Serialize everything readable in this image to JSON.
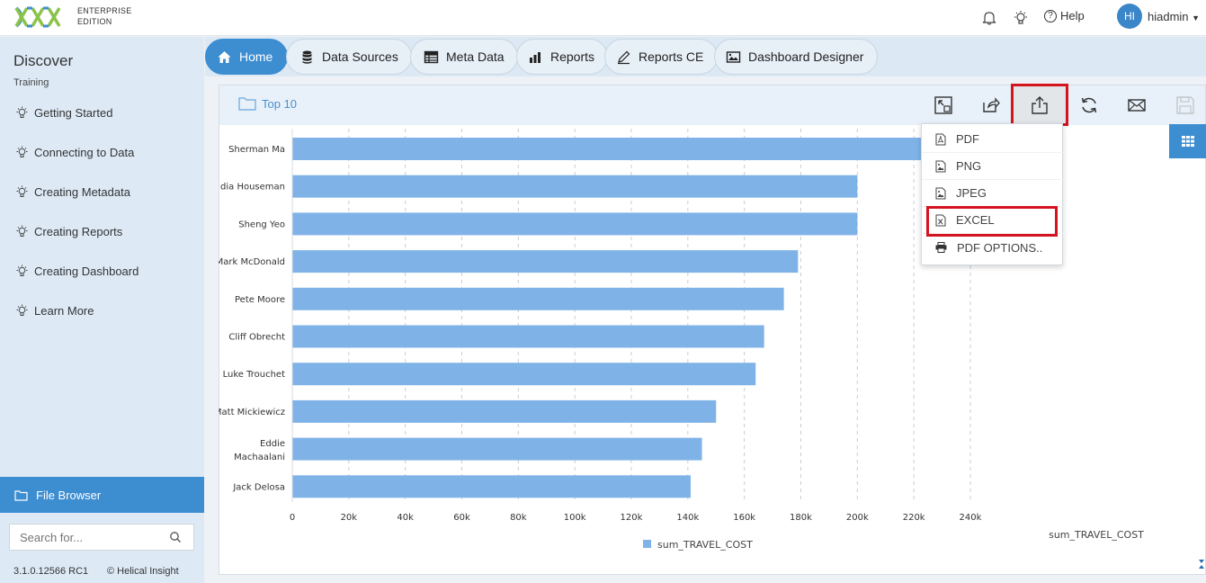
{
  "header": {
    "edition_line1": "ENTERPRISE",
    "edition_line2": "EDITION",
    "help_label": "Help",
    "avatar_initials": "HI",
    "username": "hiadmin",
    "icons": [
      "bell-icon",
      "bulb-icon",
      "help-icon"
    ]
  },
  "sidebar": {
    "title": "Discover",
    "subtitle": "Training",
    "items": [
      {
        "label": "Getting Started"
      },
      {
        "label": "Connecting to Data"
      },
      {
        "label": "Creating Metadata"
      },
      {
        "label": "Creating Reports"
      },
      {
        "label": "Creating Dashboard"
      },
      {
        "label": "Learn More"
      }
    ],
    "file_browser_label": "File Browser",
    "search_placeholder": "Search for...",
    "version": "3.1.0.12566 RC1",
    "copyright": "© Helical Insight"
  },
  "tabs": [
    {
      "label": "Home",
      "icon": "home-icon"
    },
    {
      "label": "Data Sources",
      "icon": "database-icon"
    },
    {
      "label": "Meta Data",
      "icon": "table-icon"
    },
    {
      "label": "Reports",
      "icon": "bar-chart-icon"
    },
    {
      "label": "Reports CE",
      "icon": "pencil-icon"
    },
    {
      "label": "Dashboard Designer",
      "icon": "image-icon"
    }
  ],
  "report": {
    "folder_title": "Top 10",
    "toolbar_icons": [
      "resize-icon",
      "share-icon",
      "export-icon",
      "refresh-icon",
      "mail-icon",
      "save-icon"
    ]
  },
  "export_menu": {
    "items": [
      {
        "label": "PDF",
        "icon": "pdf-icon"
      },
      {
        "label": "PNG",
        "icon": "image-file-icon"
      },
      {
        "label": "JPEG",
        "icon": "image-file-icon"
      },
      {
        "label": "EXCEL",
        "icon": "excel-icon"
      },
      {
        "label": "PDF OPTIONS..",
        "icon": "printer-icon"
      }
    ]
  },
  "colors": {
    "accent": "#3d8dd1",
    "bar": "#7fb3e8",
    "highlight": "#d4141f"
  },
  "chart_data": {
    "type": "bar",
    "orientation": "horizontal",
    "categories": [
      "Sherman Ma",
      "dia Houseman",
      "Sheng Yeo",
      "Mark McDonald",
      "Pete Moore",
      "Cliff Obrecht",
      "Luke Trouchet",
      "Matt Mickiewicz",
      "Eddie Machaalani",
      "Jack Delosa"
    ],
    "category_lines": [
      [
        "Sherman Ma"
      ],
      [
        "dia Houseman"
      ],
      [
        "Sheng Yeo"
      ],
      [
        "Mark McDonald"
      ],
      [
        "Pete Moore"
      ],
      [
        "Cliff Obrecht"
      ],
      [
        "Luke Trouchet"
      ],
      [
        "Matt Mickiewicz"
      ],
      [
        "Eddie",
        "Machaalani"
      ],
      [
        "Jack Delosa"
      ]
    ],
    "series": [
      {
        "name": "sum_TRAVEL_COST",
        "values": [
          229000,
          200000,
          200000,
          179000,
          174000,
          167000,
          164000,
          150000,
          145000,
          141000
        ]
      }
    ],
    "xlim": [
      0,
      240000
    ],
    "x_ticks": [
      0,
      20000,
      40000,
      60000,
      80000,
      100000,
      120000,
      140000,
      160000,
      180000,
      200000,
      220000,
      240000
    ],
    "x_tick_labels": [
      "0",
      "20k",
      "40k",
      "60k",
      "80k",
      "100k",
      "120k",
      "140k",
      "160k",
      "180k",
      "200k",
      "220k",
      "240k"
    ],
    "xlabel": "sum_TRAVEL_COST",
    "legend": [
      "sum_TRAVEL_COST"
    ],
    "legend_position": "bottom",
    "grid": true
  }
}
